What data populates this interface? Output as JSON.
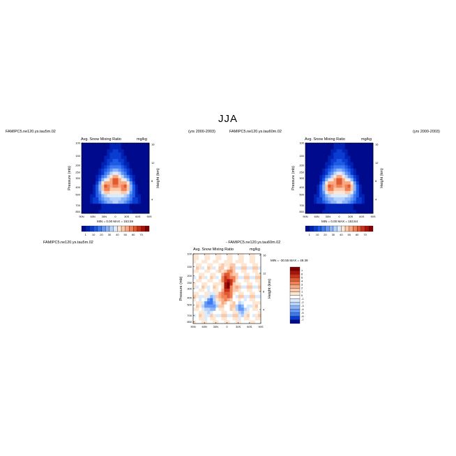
{
  "figure": {
    "title": "JJA",
    "panel1_header_left": "FAMIPC5.ne120.ys.tau5m.02",
    "panel1_header_right": "(yrs 2000-2003)",
    "panel2_header_left": "FAMIPC5.ne120.ys.tau60m.02",
    "panel2_header_right": "(yrs 2000-2003)",
    "panel3_header_left": "FAMIPC5.ne120.ys.tau5m.02",
    "panel3_header_right": "- FAMIPC5.ne120.ys.tau60m.02"
  },
  "chart_data": [
    {
      "type": "heatmap",
      "title": "Avg. Snow Mixing Ratio",
      "units": "mg/kg",
      "ylabel": "Pressure (mb)",
      "ylabel_right": "Height (km)",
      "x_ticks": [
        "90N",
        "60N",
        "30N",
        "0",
        "30S",
        "60S",
        "90S"
      ],
      "y_ticks": [
        "100",
        "150",
        "200",
        "250",
        "300",
        "400",
        "500",
        "700",
        "850"
      ],
      "y_right_ticks": [
        "16",
        "12",
        "8",
        "4"
      ],
      "stats": "MIN =    0.00   MAX =  153.59",
      "colorbar": {
        "labels": [
          "1",
          "10",
          "20",
          "30",
          "40",
          "50",
          "60",
          "70"
        ],
        "colors": [
          "#000a8c",
          "#0022b4",
          "#0a3cd2",
          "#1e5ae6",
          "#3c78f0",
          "#6496f5",
          "#8cb4fa",
          "#b4d2fc",
          "#dceafd",
          "#fde6d2",
          "#fcc8aa",
          "#f8a882",
          "#f08258",
          "#e05a32",
          "#c8321a",
          "#a8140a",
          "#800000"
        ]
      },
      "description_values": {
        "peak_region": "lower troposphere tropics",
        "max": 153.59,
        "min": 0.0
      }
    },
    {
      "type": "heatmap",
      "title": "Avg. Snow Mixing Ratio",
      "units": "mg/kg",
      "ylabel": "Pressure (mb)",
      "ylabel_right": "Height (km)",
      "x_ticks": [
        "90N",
        "60N",
        "30N",
        "0",
        "30S",
        "60S",
        "90S"
      ],
      "y_ticks": [
        "100",
        "150",
        "200",
        "250",
        "300",
        "400",
        "500",
        "700",
        "850"
      ],
      "y_right_ticks": [
        "16",
        "12",
        "8",
        "4"
      ],
      "stats": "MIN =    0.00   MAX =  153.64",
      "colorbar": {
        "labels": [
          "1",
          "10",
          "20",
          "30",
          "40",
          "50",
          "60",
          "70"
        ],
        "colors": [
          "#000a8c",
          "#0022b4",
          "#0a3cd2",
          "#1e5ae6",
          "#3c78f0",
          "#6496f5",
          "#8cb4fa",
          "#b4d2fc",
          "#dceafd",
          "#fde6d2",
          "#fcc8aa",
          "#f8a882",
          "#f08258",
          "#e05a32",
          "#c8321a",
          "#a8140a",
          "#800000"
        ]
      },
      "description_values": {
        "max": 153.64,
        "min": 0.0
      }
    },
    {
      "type": "heatmap",
      "title": "Avg. Snow Mixing Ratio",
      "units": "mg/kg",
      "ylabel": "Pressure (mb)",
      "ylabel_right": "Height (km)",
      "x_ticks": [
        "90N",
        "60N",
        "30N",
        "0",
        "30S",
        "60S",
        "90S"
      ],
      "y_ticks": [
        "100",
        "150",
        "200",
        "250",
        "300",
        "400",
        "500",
        "700",
        "850"
      ],
      "y_right_ticks": [
        "16",
        "12",
        "8",
        "4"
      ],
      "stats": "MIN =  -30.55   MAX =   49.39",
      "colorbar": {
        "labels": [
          "7",
          "6",
          "5",
          "4",
          "3",
          "2",
          "1",
          "0",
          "-1",
          "-2",
          "-3",
          "-4",
          "-5",
          "-6",
          "-7"
        ],
        "colors": [
          "#800000",
          "#a8140a",
          "#c8321a",
          "#e05a32",
          "#f08258",
          "#f8a882",
          "#fcc8aa",
          "#fde6d2",
          "#ffffff",
          "#dceafd",
          "#b4d2fc",
          "#8cb4fa",
          "#6496f5",
          "#3c78f0",
          "#0a3cd2",
          "#000a8c"
        ]
      },
      "description_values": {
        "max": 49.39,
        "min": -30.55
      }
    }
  ]
}
